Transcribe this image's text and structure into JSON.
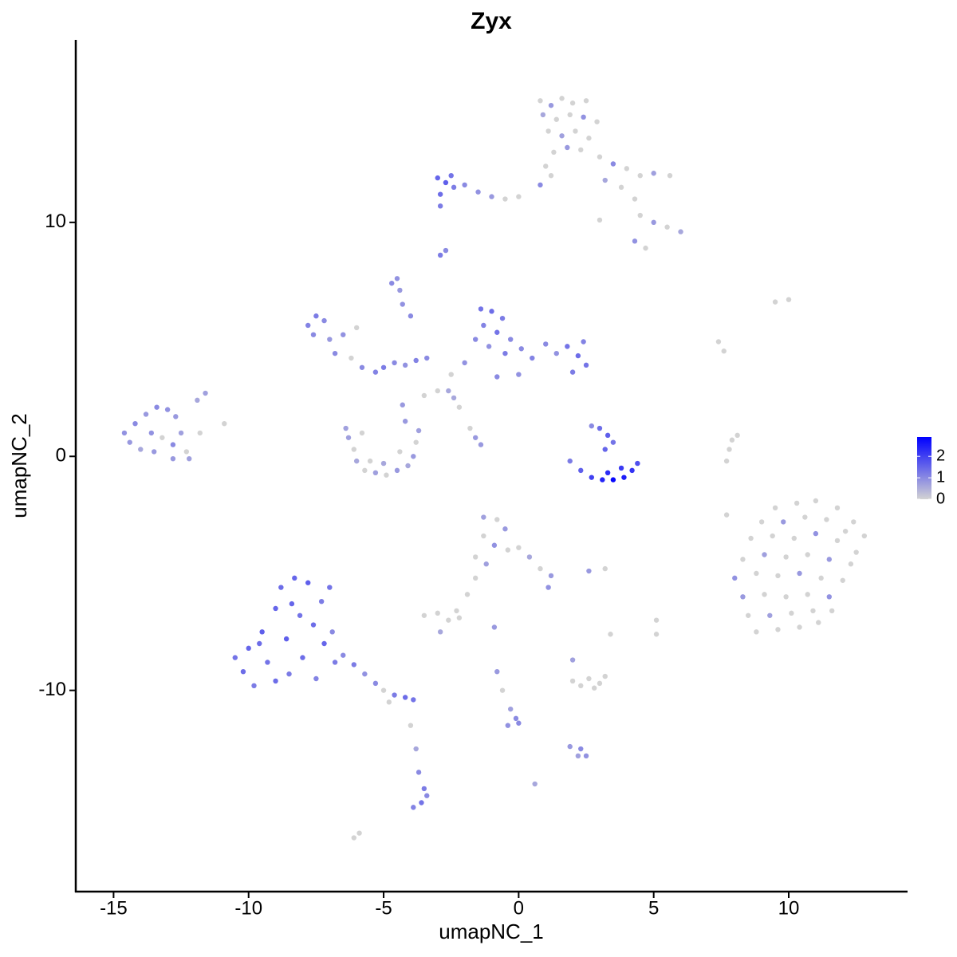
{
  "chart_data": {
    "type": "scatter",
    "title": "Zyx",
    "x_label": "umapNC_1",
    "y_label": "umapNC_2",
    "xlim": [
      -16.4,
      14.4
    ],
    "ylim": [
      -18.6,
      17.8
    ],
    "xticks": [
      -15,
      -10,
      -5,
      0,
      5,
      10
    ],
    "yticks": [
      -10,
      0,
      10
    ],
    "colors": [
      "#d3d3d3",
      "#0000ff"
    ],
    "clim": [
      0,
      2.9
    ],
    "colorbar_ticks": [
      0,
      1,
      2
    ],
    "x": [
      0.8,
      1.2,
      1.6,
      2.0,
      2.5,
      0.9,
      1.4,
      1.9,
      2.4,
      2.9,
      1.1,
      1.6,
      2.1,
      2.6,
      1.8,
      1.3,
      2.3,
      1.0,
      0.8,
      1.2,
      3.0,
      3.5,
      4.0,
      4.5,
      5.0,
      5.6,
      3.8,
      4.3,
      3.2,
      4.5,
      5.0,
      5.5,
      6.0,
      4.3,
      4.7,
      3.0,
      -3.0,
      -2.7,
      -2.4,
      -2.9,
      -2.5,
      -2.0,
      -1.5,
      -1.0,
      -0.5,
      0.0,
      -2.9,
      -2.9,
      -2.7,
      -4.7,
      -4.5,
      -4.4,
      -4.3,
      -4.0,
      -7.8,
      -7.5,
      -7.2,
      -7.6,
      -7.0,
      -6.8,
      -6.2,
      -5.8,
      -5.3,
      -5.0,
      -4.6,
      -4.2,
      -3.8,
      -3.4,
      -6.5,
      -6.0,
      -1.4,
      -1.0,
      -0.6,
      -1.3,
      -0.8,
      -0.3,
      -1.6,
      -1.1,
      -0.5,
      0.1,
      0.5,
      1.0,
      1.4,
      1.8,
      2.2,
      2.5,
      2.0,
      2.4,
      -2.0,
      -2.5,
      -3.0,
      -2.4,
      -2.2,
      -1.8,
      -1.6,
      -1.4,
      -2.6,
      -3.5,
      0.0,
      -0.8,
      -4.3,
      -14.6,
      -14.2,
      -13.8,
      -13.4,
      -13.0,
      -12.7,
      -14.4,
      -14.0,
      -13.6,
      -13.2,
      -12.8,
      -13.5,
      -12.5,
      -12.3,
      -12.2,
      -12.8,
      -11.8,
      -11.6,
      -11.9,
      -10.9,
      -6.3,
      -6.1,
      -6.0,
      -5.7,
      -5.3,
      -4.9,
      -4.5,
      -4.1,
      -3.9,
      -3.8,
      -3.7,
      -5.5,
      -5.0,
      -4.4,
      -6.4,
      -4.2,
      -5.8,
      3.0,
      3.3,
      3.5,
      3.2,
      2.7,
      1.9,
      2.3,
      2.7,
      3.1,
      3.5,
      3.9,
      4.2,
      4.4,
      3.3,
      3.8,
      7.7,
      7.8,
      7.9,
      8.1,
      7.7,
      7.6,
      9.5,
      10.0,
      7.4,
      9.5,
      10.3,
      11.0,
      11.8,
      12.4,
      12.8,
      9.0,
      9.8,
      10.6,
      11.4,
      12.1,
      8.6,
      9.4,
      10.2,
      11.0,
      11.8,
      12.5,
      8.3,
      9.1,
      9.9,
      10.7,
      11.5,
      12.3,
      8.0,
      8.8,
      9.6,
      10.4,
      11.2,
      12.0,
      8.3,
      9.1,
      9.9,
      10.7,
      11.5,
      8.5,
      9.3,
      10.1,
      10.9,
      11.6,
      8.8,
      9.6,
      10.4,
      11.1,
      -1.3,
      -0.8,
      -0.5,
      -1.3,
      -0.9,
      -0.4,
      0.0,
      0.4,
      0.8,
      1.2,
      1.1,
      -1.6,
      -1.2,
      -1.6,
      -1.9,
      -2.3,
      -3.5,
      -3.0,
      -2.6,
      -2.2,
      -2.9,
      2.6,
      3.2,
      -0.9,
      -0.8,
      -0.6,
      -0.3,
      -0.1,
      0.0,
      -0.4,
      2.0,
      2.3,
      2.6,
      3.0,
      3.2,
      2.8,
      2.0,
      3.4,
      5.1,
      5.1,
      1.9,
      2.3,
      2.5,
      2.2,
      0.6,
      -10.5,
      -10.2,
      -10.0,
      -9.8,
      -9.5,
      -9.3,
      -9.0,
      -9.0,
      -8.8,
      -8.6,
      -8.5,
      -8.3,
      -8.1,
      -8.0,
      -7.8,
      -7.6,
      -7.5,
      -7.3,
      -7.2,
      -7.0,
      -6.9,
      -6.8,
      -9.6,
      -8.4,
      -6.5,
      -6.1,
      -5.7,
      -5.3,
      -5.0,
      -4.6,
      -4.2,
      -3.9,
      -4.8,
      -4.0,
      -3.8,
      -3.7,
      -3.5,
      -3.6,
      -3.9,
      -3.4,
      -6.1,
      -5.9
    ],
    "y": [
      15.2,
      15.0,
      15.3,
      15.1,
      15.2,
      14.6,
      14.4,
      14.6,
      14.5,
      14.3,
      13.9,
      13.7,
      13.9,
      13.6,
      13.2,
      13.0,
      13.1,
      12.4,
      11.6,
      12.0,
      12.8,
      12.5,
      12.3,
      12.0,
      12.1,
      12.0,
      11.5,
      11.0,
      11.8,
      10.3,
      10.0,
      9.8,
      9.6,
      9.2,
      8.9,
      10.1,
      11.9,
      11.7,
      11.5,
      11.2,
      12.0,
      11.6,
      11.3,
      11.1,
      11.0,
      11.1,
      10.7,
      8.6,
      8.8,
      7.4,
      7.6,
      7.1,
      6.5,
      6.0,
      5.6,
      6.0,
      5.8,
      5.2,
      5.0,
      4.4,
      4.2,
      3.8,
      3.6,
      3.8,
      4.0,
      3.9,
      4.1,
      4.2,
      5.2,
      5.5,
      6.3,
      6.2,
      5.9,
      5.6,
      5.3,
      5.0,
      5.0,
      4.7,
      4.4,
      4.6,
      4.2,
      4.8,
      4.4,
      4.7,
      4.3,
      3.9,
      3.6,
      4.9,
      4.0,
      3.5,
      2.8,
      2.5,
      2.1,
      1.2,
      0.8,
      0.5,
      2.8,
      2.6,
      3.5,
      3.4,
      2.2,
      1.0,
      1.4,
      1.8,
      2.1,
      2.0,
      1.7,
      0.6,
      0.3,
      1.0,
      0.8,
      0.5,
      0.2,
      1.0,
      0.2,
      -0.1,
      -0.1,
      1.0,
      2.7,
      2.4,
      1.4,
      0.8,
      0.3,
      -0.2,
      -0.6,
      -0.7,
      -0.8,
      -0.6,
      -0.4,
      0.0,
      0.6,
      1.1,
      -0.2,
      -0.3,
      0.2,
      1.2,
      1.5,
      1.0,
      1.2,
      0.9,
      0.6,
      0.3,
      1.3,
      -0.2,
      -0.6,
      -0.9,
      -1.0,
      -1.0,
      -0.9,
      -0.6,
      -0.3,
      -0.7,
      -0.5,
      -0.2,
      0.3,
      0.7,
      0.9,
      -2.5,
      4.5,
      6.6,
      6.7,
      4.9,
      -2.2,
      -2.0,
      -1.9,
      -2.2,
      -2.8,
      -3.4,
      -2.8,
      -2.8,
      -2.6,
      -2.7,
      -3.2,
      -3.5,
      -3.4,
      -3.5,
      -3.3,
      -3.6,
      -4.1,
      -4.4,
      -4.2,
      -4.3,
      -4.2,
      -4.4,
      -4.6,
      -5.2,
      -5.0,
      -5.1,
      -5.0,
      -5.2,
      -5.3,
      -6.0,
      -5.9,
      -6.0,
      -5.9,
      -6.0,
      -6.8,
      -6.8,
      -6.7,
      -6.6,
      -6.6,
      -7.5,
      -7.4,
      -7.3,
      -7.1,
      -2.6,
      -2.7,
      -3.1,
      -3.4,
      -3.8,
      -4.0,
      -3.9,
      -4.3,
      -4.8,
      -5.1,
      -5.6,
      -4.3,
      -4.6,
      -5.2,
      -5.9,
      -6.6,
      -6.8,
      -6.7,
      -7.0,
      -6.9,
      -7.5,
      -4.9,
      -4.8,
      -7.3,
      -9.2,
      -10.0,
      -10.8,
      -11.2,
      -11.4,
      -11.5,
      -9.6,
      -9.8,
      -9.5,
      -9.7,
      -9.4,
      -9.9,
      -8.7,
      -7.6,
      -7.0,
      -7.6,
      -12.4,
      -12.5,
      -12.8,
      -12.8,
      -14.0,
      -8.6,
      -9.2,
      -8.2,
      -9.8,
      -7.5,
      -8.8,
      -6.5,
      -9.6,
      -5.6,
      -7.8,
      -9.3,
      -5.2,
      -6.8,
      -8.6,
      -5.4,
      -7.2,
      -9.5,
      -6.2,
      -8.0,
      -5.6,
      -7.5,
      -8.8,
      -8.0,
      -6.3,
      -8.5,
      -8.9,
      -9.3,
      -9.7,
      -10.0,
      -10.2,
      -10.3,
      -10.4,
      -10.5,
      -11.5,
      -12.5,
      -13.5,
      -14.2,
      -14.8,
      -15.0,
      -14.5,
      -16.3,
      -16.1
    ],
    "values": [
      0,
      0.8,
      0,
      0,
      0,
      0.6,
      0,
      0,
      0.9,
      0,
      0,
      0.7,
      0,
      0,
      0.8,
      0,
      0,
      0,
      1.0,
      0,
      0,
      1.0,
      0,
      0,
      0.7,
      0,
      0,
      0,
      0.6,
      0,
      0.8,
      0,
      0.6,
      0.9,
      0,
      0,
      1.5,
      1.6,
      1.2,
      1.4,
      1.3,
      1.0,
      0.9,
      0.8,
      0,
      0,
      1.2,
      1.2,
      1.0,
      1.0,
      0.9,
      0.8,
      0.9,
      1.0,
      1.1,
      1.2,
      1.0,
      1.0,
      0.8,
      1.0,
      0,
      1.0,
      1.1,
      1.2,
      1.0,
      0.9,
      1.1,
      1.0,
      0.9,
      0,
      1.3,
      1.4,
      1.2,
      1.1,
      1.3,
      1.0,
      1.0,
      0.9,
      1.2,
      1.0,
      1.1,
      1.0,
      0.9,
      1.3,
      1.4,
      1.3,
      1.2,
      1.1,
      0.9,
      0,
      0,
      0.6,
      0,
      0,
      0.8,
      0.8,
      0.6,
      0,
      0.9,
      1.0,
      0.8,
      0.9,
      1.0,
      0.8,
      1.0,
      0.9,
      0.8,
      0.8,
      0.6,
      0.9,
      0,
      1.0,
      0.8,
      0.7,
      0,
      0.7,
      0.8,
      0,
      0.7,
      0.6,
      0,
      0.7,
      0,
      0.6,
      0,
      0.7,
      0,
      0.8,
      0.6,
      0.8,
      0,
      0.7,
      0,
      0.6,
      0,
      0.7,
      0.8,
      0,
      1.4,
      1.6,
      1.3,
      1.5,
      1.0,
      1.2,
      1.6,
      2.0,
      2.4,
      2.8,
      2.5,
      2.2,
      1.8,
      2.3,
      2.1,
      0,
      0,
      0,
      0,
      0,
      0,
      0,
      0,
      0,
      0,
      0,
      0,
      0,
      0,
      0,
      0,
      0.8,
      0,
      0,
      0,
      0,
      0,
      0,
      0.9,
      0,
      0,
      0,
      0.7,
      0,
      0,
      0.8,
      0,
      0.9,
      0,
      0,
      0.8,
      0,
      0,
      0.8,
      0,
      0,
      0,
      0.9,
      0,
      0.7,
      0,
      0,
      0,
      0,
      0,
      0,
      0,
      0.7,
      0,
      0.8,
      0,
      0.9,
      0,
      0,
      0.6,
      0,
      0.8,
      0.9,
      0,
      0.7,
      0,
      0,
      0,
      0,
      0,
      0,
      0,
      0.6,
      0.8,
      0,
      0.8,
      0.8,
      0,
      0.7,
      1.0,
      1.0,
      0.9,
      0,
      0,
      0,
      0,
      0,
      0,
      0.7,
      0,
      0,
      0,
      0.8,
      1.0,
      0.9,
      0.7,
      0.6,
      1.3,
      1.4,
      1.5,
      1.2,
      1.6,
      1.3,
      1.5,
      1.4,
      1.4,
      1.6,
      1.2,
      1.5,
      1.3,
      1.4,
      1.6,
      1.4,
      1.1,
      1.2,
      1.5,
      1.3,
      1.0,
      1.2,
      1.4,
      1.5,
      1.0,
      1.2,
      0.9,
      1.0,
      0,
      1.2,
      1.4,
      1.3,
      0,
      0,
      0.6,
      1.0,
      1.2,
      1.3,
      1.1,
      1.0,
      0,
      0
    ]
  }
}
